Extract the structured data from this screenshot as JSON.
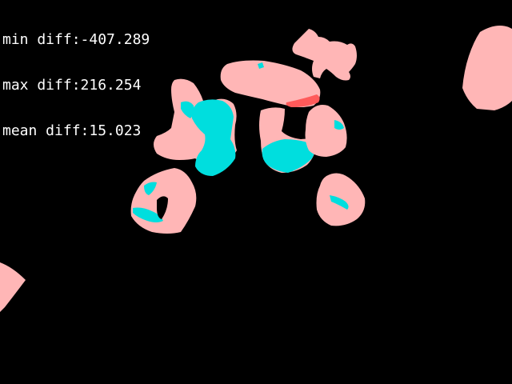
{
  "overlay": {
    "min_label": "min diff:",
    "min_value": "-407.289",
    "max_label": "max diff:",
    "max_value": "216.254",
    "mean_label": "mean diff:",
    "mean_value": "15.023"
  },
  "colors": {
    "background": "#000000",
    "positive": "#ffb6b6",
    "negative": "#00dede",
    "strong_positive": "#ff5a5a",
    "text": "#ffffff"
  }
}
